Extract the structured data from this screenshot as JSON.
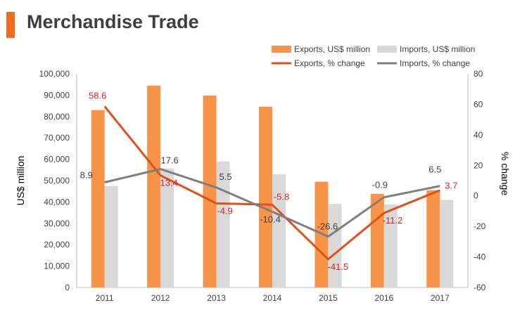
{
  "header": {
    "title": "Merchandise Trade",
    "accent_color": "#f26b21"
  },
  "colors": {
    "exports_bar": "#f7944a",
    "imports_bar": "#d9d9d9",
    "exports_line": "#e0501a",
    "imports_line": "#7f7f7f",
    "exports_label": "#e02020",
    "imports_label": "#404040",
    "axis": "#bfbfbf"
  },
  "chart_data": {
    "type": "bar",
    "title": "Merchandise Trade",
    "categories": [
      "2011",
      "2012",
      "2013",
      "2014",
      "2015",
      "2016",
      "2017"
    ],
    "series": [
      {
        "name": "Exports, US$ million",
        "kind": "bar",
        "axis": "left",
        "values": [
          83000,
          94500,
          89800,
          84600,
          49500,
          43800,
          45500
        ]
      },
      {
        "name": "Imports, US$ million",
        "kind": "bar",
        "axis": "left",
        "values": [
          47500,
          55700,
          59000,
          53000,
          39100,
          38800,
          41000
        ]
      },
      {
        "name": "Exports, % change",
        "kind": "line",
        "axis": "right",
        "values": [
          58.6,
          13.4,
          -4.9,
          -5.8,
          -41.5,
          -11.2,
          3.7
        ],
        "labels": [
          "58.6",
          "13.4",
          "-4.9",
          "-5.8",
          "-41.5",
          "-11.2",
          "3.7"
        ]
      },
      {
        "name": "Imports, % change",
        "kind": "line",
        "axis": "right",
        "values": [
          8.9,
          17.6,
          5.5,
          -10.4,
          -26.6,
          -0.9,
          6.5
        ],
        "labels": [
          "8.9",
          "17.6",
          "5.5",
          "-10.4",
          "-26.6",
          "-0.9",
          "6.5"
        ]
      }
    ],
    "ylabel": "US$ million",
    "y2label": "% change",
    "ylim": [
      0,
      100000
    ],
    "y2lim": [
      -60,
      80
    ],
    "yticks": [
      "0",
      "10,000",
      "20,000",
      "30,000",
      "40,000",
      "50,000",
      "60,000",
      "70,000",
      "80,000",
      "90,000",
      "100,000"
    ],
    "y2ticks": [
      "-60",
      "-40",
      "-20",
      "0",
      "20",
      "40",
      "60",
      "80"
    ],
    "grid": false,
    "legend_position": "top-right"
  }
}
